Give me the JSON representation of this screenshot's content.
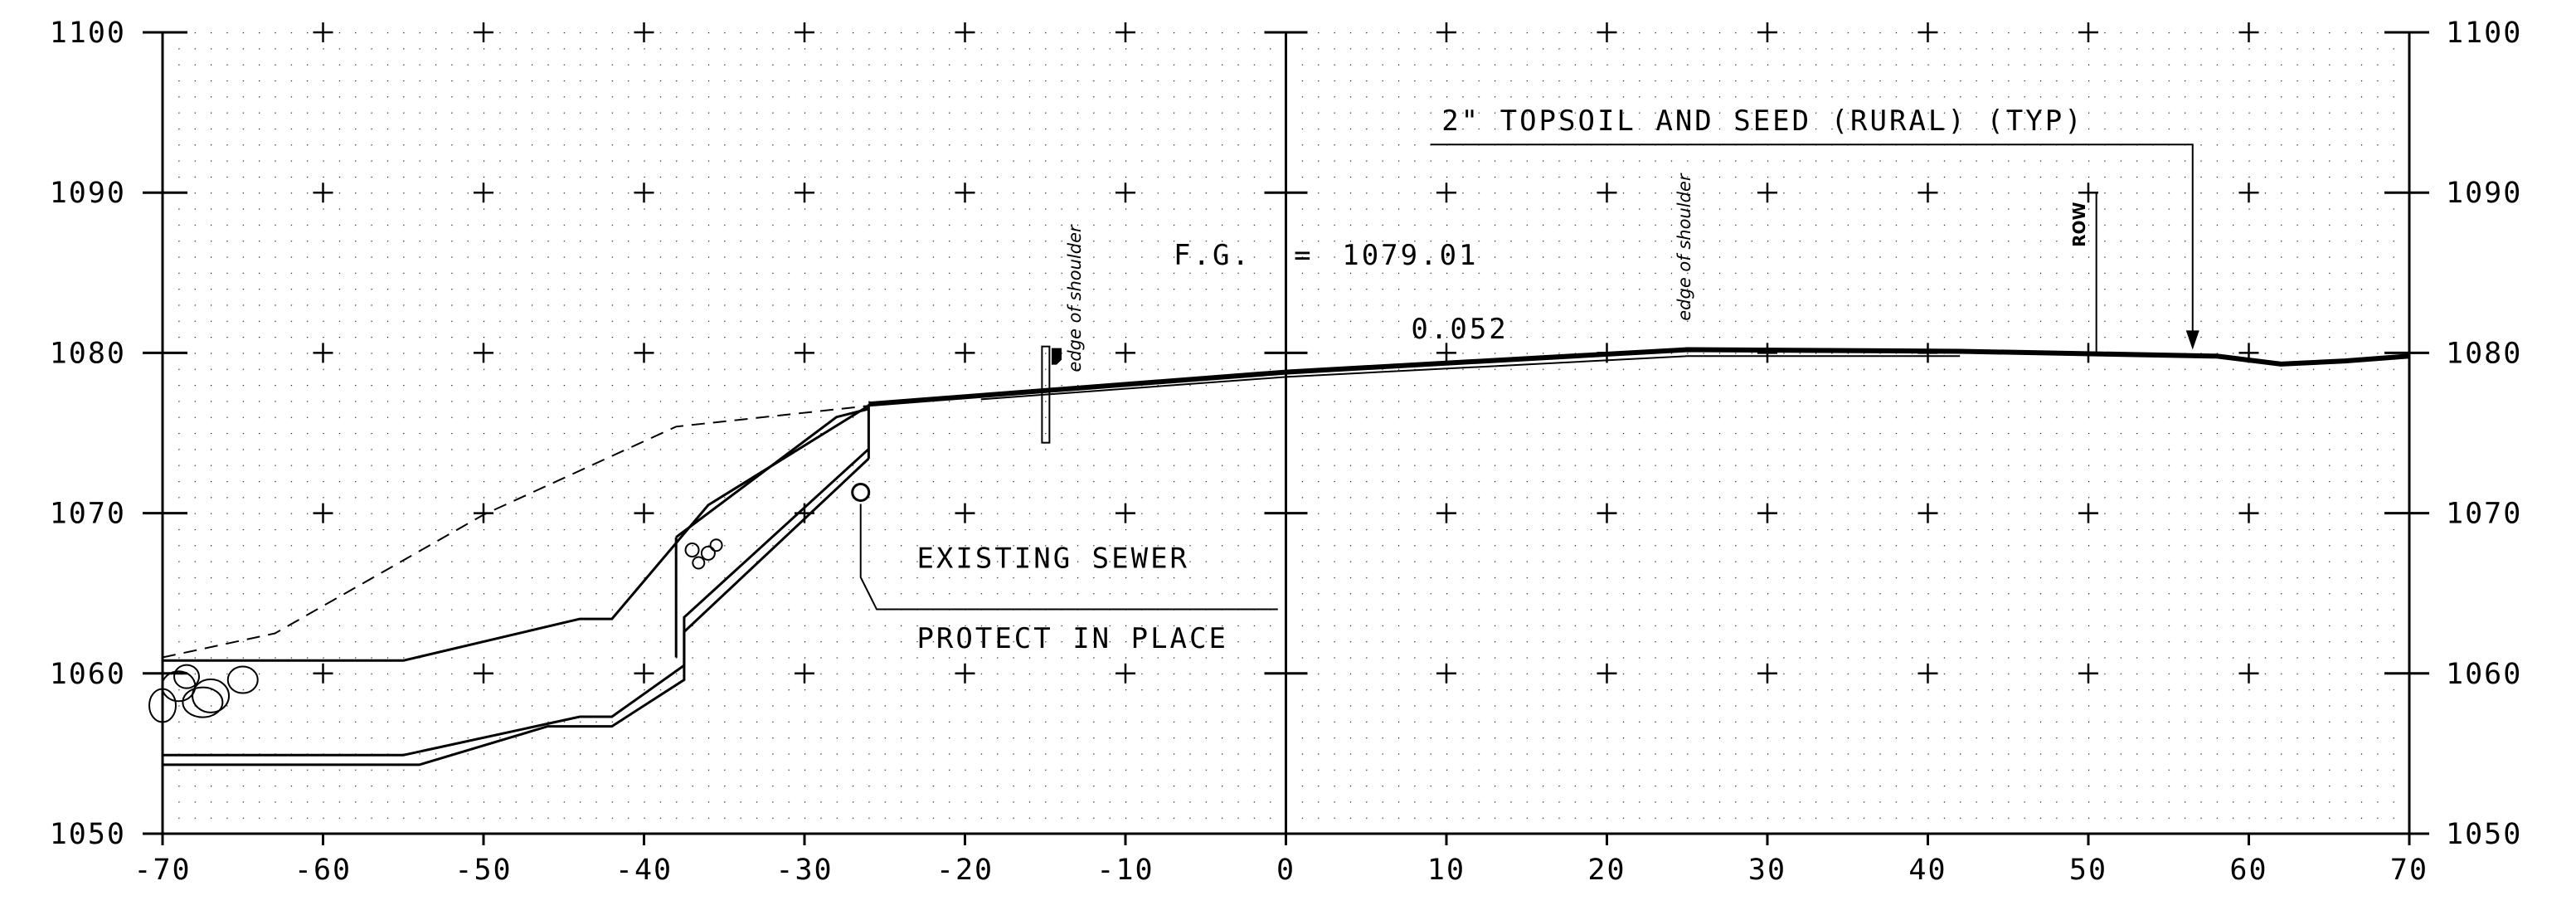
{
  "chart_data": {
    "type": "cross-section",
    "x_ticks": [
      "-70",
      "-60",
      "-50",
      "-40",
      "-30",
      "-20",
      "-10",
      "0",
      "10",
      "20",
      "30",
      "40",
      "50",
      "60",
      "70"
    ],
    "y_ticks": [
      "1100",
      "1090",
      "1080",
      "1070",
      "1060",
      "1050"
    ],
    "xlim": [
      -70,
      70
    ],
    "ylim": [
      1050,
      1100
    ],
    "grid": "dotted 1-unit grid with + markers every 10",
    "existing_ground": [
      [
        -70,
        1061
      ],
      [
        -63,
        1062.5
      ],
      [
        -50,
        1069.9
      ],
      [
        -38,
        1075.4
      ],
      [
        -26,
        1076.7
      ]
    ],
    "proposed_grade": [
      [
        -26,
        1076.8
      ],
      [
        0,
        1078.8
      ],
      [
        25,
        1080.2
      ],
      [
        42,
        1080.1
      ],
      [
        58,
        1079.8
      ],
      [
        62,
        1079.3
      ],
      [
        66,
        1079.5
      ],
      [
        70,
        1079.8
      ]
    ],
    "pavement_bottom": [
      [
        -19,
        1077.1
      ],
      [
        0,
        1078.5
      ],
      [
        25,
        1079.8
      ],
      [
        42,
        1079.8
      ]
    ],
    "excavation_top": [
      [
        -70,
        1060.8
      ],
      [
        -55,
        1060.8
      ],
      [
        -44,
        1063.4
      ],
      [
        -42,
        1063.4
      ],
      [
        -36,
        1070.5
      ],
      [
        -26,
        1076.7
      ]
    ],
    "excavation_inner": [
      [
        -38,
        1068.5
      ],
      [
        -28,
        1076
      ],
      [
        -26,
        1076.5
      ]
    ],
    "excavation_bottom": [
      [
        -70,
        1054.9
      ],
      [
        -55,
        1054.9
      ],
      [
        -44,
        1057.3
      ],
      [
        -42,
        1057.3
      ],
      [
        -37.5,
        1060.5
      ],
      [
        -37.5,
        1063.5
      ],
      [
        -26,
        1074
      ]
    ],
    "excavation_bottom2": [
      [
        -70,
        1054.3
      ],
      [
        -54,
        1054.3
      ],
      [
        -46,
        1056.7
      ],
      [
        -42,
        1056.7
      ],
      [
        -37.5,
        1059.6
      ],
      [
        -37.5,
        1062.6
      ],
      [
        -26,
        1073.4
      ]
    ],
    "sewer": {
      "x": -26.5,
      "y": 1071.3
    },
    "row_x": 50.5,
    "annotations": {
      "fg_label": "F.G.",
      "fg_eq": "=",
      "fg_value": "1079.01",
      "slope": "0.052",
      "topsoil": "2\" TOPSOIL AND SEED (RURAL) (TYP)",
      "sewer_line1": "EXISTING SEWER",
      "sewer_line2": "PROTECT IN PLACE",
      "shoulder_left": "edge of shoulder",
      "shoulder_right": "edge of shoulder",
      "row": "ROW"
    }
  }
}
